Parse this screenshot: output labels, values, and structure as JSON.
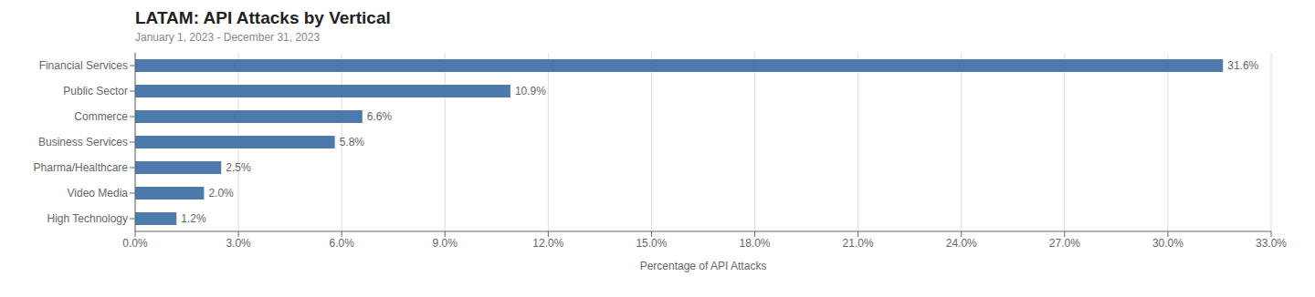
{
  "chart_data": {
    "type": "bar",
    "orientation": "horizontal",
    "title": "LATAM: API Attacks by Vertical",
    "subtitle": "January 1, 2023 - December 31, 2023",
    "xlabel": "Percentage of API Attacks",
    "categories": [
      "Financial Services",
      "Public Sector",
      "Commerce",
      "Business Services",
      "Pharma/Healthcare",
      "Video Media",
      "High Technology"
    ],
    "values": [
      31.6,
      10.9,
      6.6,
      5.8,
      2.5,
      2.0,
      1.2
    ],
    "value_labels": [
      "31.6%",
      "10.9%",
      "6.6%",
      "5.8%",
      "2.5%",
      "2.0%",
      "1.2%"
    ],
    "data_labels": true,
    "color": "#4d7aaa",
    "xlim": [
      0,
      33.0
    ],
    "xticks": [
      {
        "value": 0.0,
        "label": "0.0%"
      },
      {
        "value": 3.0,
        "label": "3.0%"
      },
      {
        "value": 6.0,
        "label": "6.0%"
      },
      {
        "value": 9.0,
        "label": "9.0%"
      },
      {
        "value": 12.0,
        "label": "12.0%"
      },
      {
        "value": 15.0,
        "label": "15.0%"
      },
      {
        "value": 18.0,
        "label": "18.0%"
      },
      {
        "value": 21.0,
        "label": "21.0%"
      },
      {
        "value": 24.0,
        "label": "24.0%"
      },
      {
        "value": 27.0,
        "label": "27.0%"
      },
      {
        "value": 30.0,
        "label": "30.0%"
      },
      {
        "value": 33.0,
        "label": "33.0%"
      }
    ],
    "grid": true
  }
}
